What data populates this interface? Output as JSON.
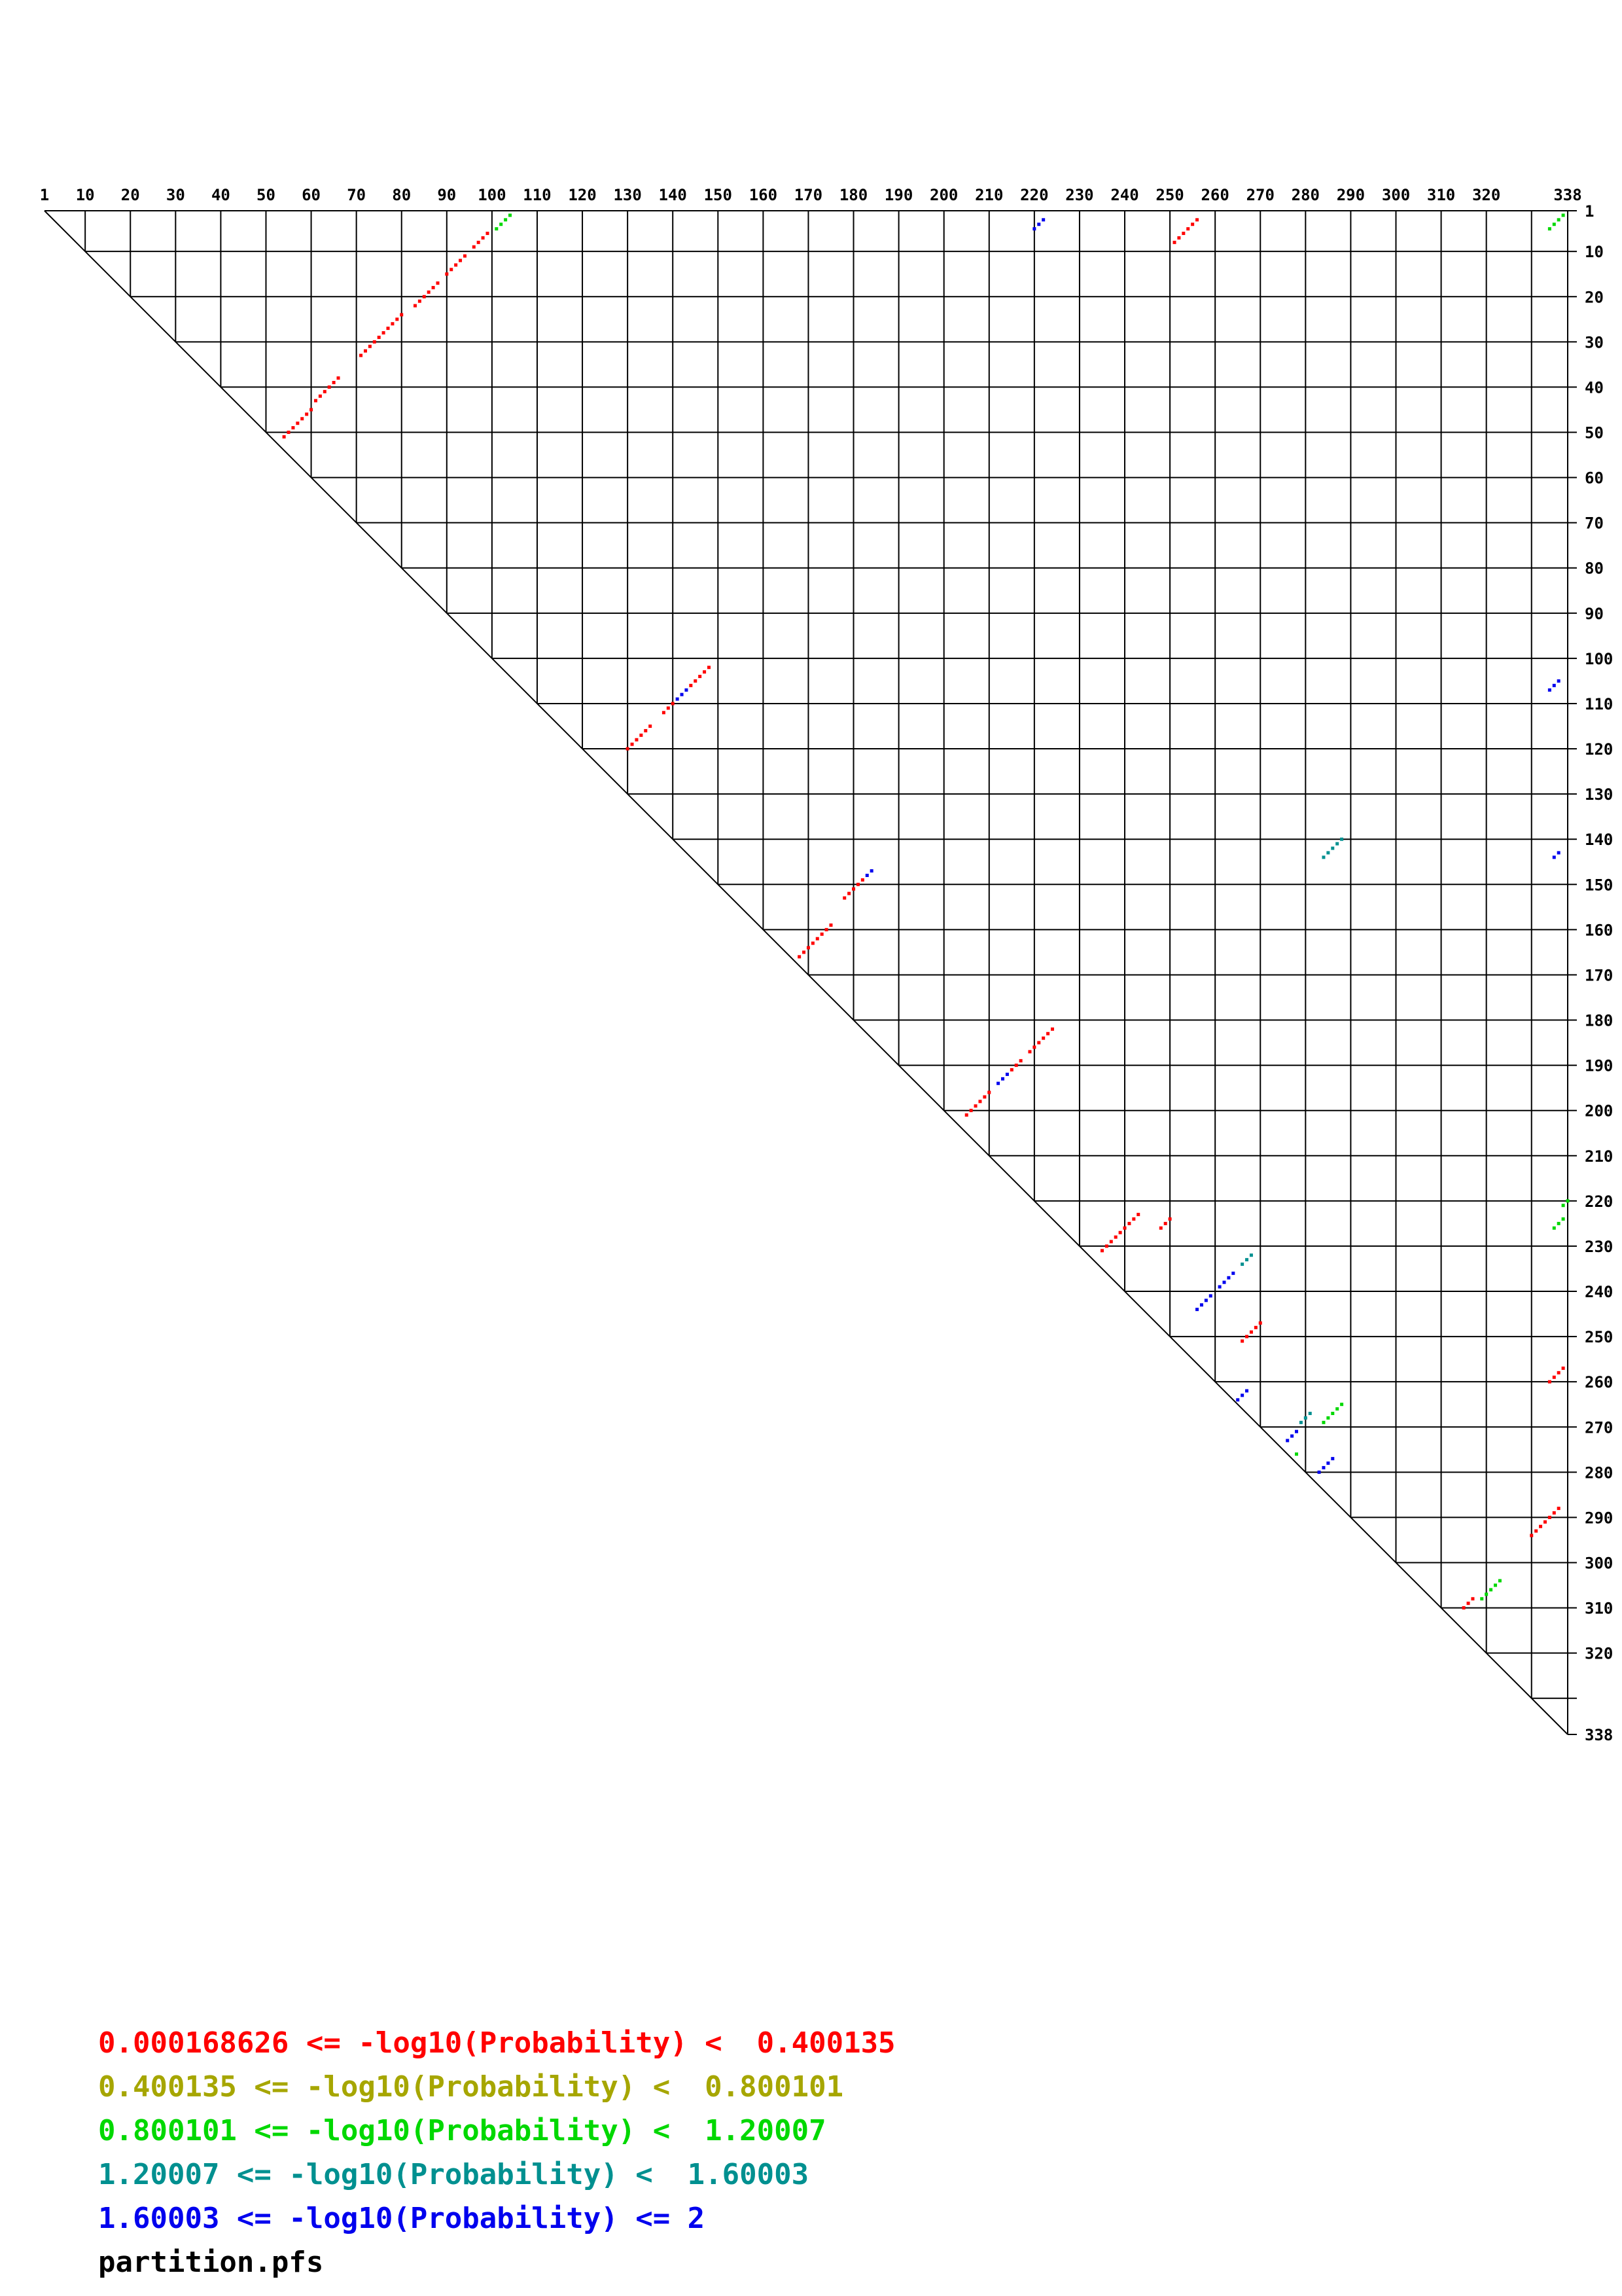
{
  "chart_data": {
    "type": "scatter",
    "subtype": "triangular-probability-dotplot",
    "title": "",
    "footer_label": "partition.pfs",
    "axis_min": 1,
    "axis_max": 338,
    "grid_interval": 10,
    "grid_ticks": [
      1,
      10,
      20,
      30,
      40,
      50,
      60,
      70,
      80,
      90,
      100,
      110,
      120,
      130,
      140,
      150,
      160,
      170,
      180,
      190,
      200,
      210,
      220,
      230,
      240,
      250,
      260,
      270,
      280,
      290,
      300,
      310,
      320,
      330,
      338
    ],
    "labeled_ticks": [
      1,
      10,
      20,
      30,
      40,
      50,
      60,
      70,
      80,
      90,
      100,
      110,
      120,
      130,
      140,
      150,
      160,
      170,
      180,
      190,
      200,
      210,
      220,
      230,
      240,
      250,
      260,
      270,
      280,
      290,
      300,
      310,
      320,
      338
    ],
    "legend_position": "bottom-left",
    "grid": true,
    "series": [
      {
        "name": "0.000168626 <= -log10(Probability) <  0.400135",
        "color": "#ff0000",
        "helices": [
          {
            "i": 6,
            "j": 99,
            "n": 4
          },
          {
            "i": 11,
            "j": 94,
            "n": 5
          },
          {
            "i": 17,
            "j": 88,
            "n": 6
          },
          {
            "i": 24,
            "j": 80,
            "n": 3
          },
          {
            "i": 27,
            "j": 77,
            "n": 7
          },
          {
            "i": 38,
            "j": 66,
            "n": 6
          },
          {
            "i": 45,
            "j": 60,
            "n": 7
          },
          {
            "i": 3,
            "j": 256,
            "n": 6
          },
          {
            "i": 102,
            "j": 148,
            "n": 5
          },
          {
            "i": 110,
            "j": 140,
            "n": 3
          },
          {
            "i": 115,
            "j": 135,
            "n": 6
          },
          {
            "i": 149,
            "j": 182,
            "n": 5
          },
          {
            "i": 159,
            "j": 175,
            "n": 8
          },
          {
            "i": 182,
            "j": 224,
            "n": 6
          },
          {
            "i": 189,
            "j": 217,
            "n": 3
          },
          {
            "i": 196,
            "j": 210,
            "n": 6
          },
          {
            "i": 223,
            "j": 243,
            "n": 9
          },
          {
            "i": 224,
            "j": 250,
            "n": 3
          },
          {
            "i": 247,
            "j": 270,
            "n": 5
          },
          {
            "i": 257,
            "j": 337,
            "n": 4
          },
          {
            "i": 288,
            "j": 336,
            "n": 7
          },
          {
            "i": 308,
            "j": 317,
            "n": 3
          }
        ]
      },
      {
        "name": "0.400135 <= -log10(Probability) <  0.800101",
        "color": "#a6a600",
        "helices": []
      },
      {
        "name": "0.800101 <= -log10(Probability) <  1.20007",
        "color": "#00d800",
        "helices": [
          {
            "i": 2,
            "j": 104,
            "n": 4
          },
          {
            "i": 2,
            "j": 337,
            "n": 4
          },
          {
            "i": 220,
            "j": 338,
            "n": 2
          },
          {
            "i": 224,
            "j": 337,
            "n": 3
          },
          {
            "i": 265,
            "j": 288,
            "n": 5
          },
          {
            "i": 276,
            "j": 278,
            "n": 1
          },
          {
            "i": 304,
            "j": 323,
            "n": 5
          }
        ]
      },
      {
        "name": "1.20007 <= -log10(Probability) <  1.60003",
        "color": "#009090",
        "helices": [
          {
            "i": 140,
            "j": 288,
            "n": 5
          },
          {
            "i": 232,
            "j": 268,
            "n": 3
          },
          {
            "i": 267,
            "j": 281,
            "n": 3
          }
        ]
      },
      {
        "name": "1.60003 <= -log10(Probability) <= 2",
        "color": "#0000ee",
        "helices": [
          {
            "i": 3,
            "j": 222,
            "n": 3
          },
          {
            "i": 105,
            "j": 336,
            "n": 3
          },
          {
            "i": 107,
            "j": 143,
            "n": 3
          },
          {
            "i": 143,
            "j": 336,
            "n": 2
          },
          {
            "i": 147,
            "j": 184,
            "n": 2
          },
          {
            "i": 192,
            "j": 214,
            "n": 3
          },
          {
            "i": 236,
            "j": 264,
            "n": 4
          },
          {
            "i": 241,
            "j": 259,
            "n": 4
          },
          {
            "i": 262,
            "j": 267,
            "n": 3
          },
          {
            "i": 271,
            "j": 278,
            "n": 3
          },
          {
            "i": 277,
            "j": 286,
            "n": 4
          }
        ]
      }
    ]
  }
}
